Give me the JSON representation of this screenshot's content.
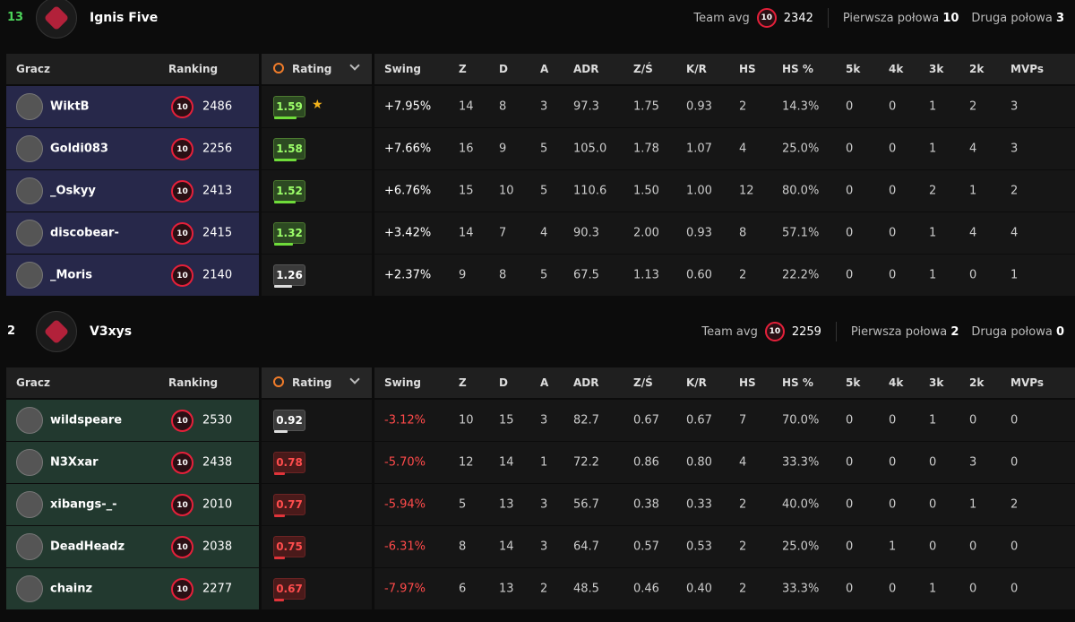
{
  "teams": [
    {
      "score": "13",
      "score_color": "#4cd35a",
      "name": "Ignis Five",
      "team_avg_label": "Team avg",
      "level": "10",
      "team_avg": "2342",
      "first_half_label": "Pierwsza połowa",
      "first_half": "10",
      "second_half_label": "Druga połowa",
      "second_half": "3",
      "row_color": "#27284a",
      "columns": [
        "Gracz",
        "Ranking",
        "Rating",
        "Swing",
        "Z",
        "D",
        "A",
        "ADR",
        "Z/Ś",
        "K/R",
        "HS",
        "HS %",
        "5k",
        "4k",
        "3k",
        "2k",
        "MVPs"
      ],
      "players": [
        {
          "name": "WiktB",
          "level": "10",
          "elo": "2486",
          "rating": 1.59,
          "rating_color": "good",
          "star": "★",
          "swing": "+7.95%",
          "swing_color": "#ffffff",
          "stats": [
            "14",
            "8",
            "3",
            "97.3",
            "1.75",
            "0.93",
            "2",
            "14.3%",
            "0",
            "0",
            "1",
            "2",
            "3"
          ]
        },
        {
          "name": "Goldi083",
          "level": "10",
          "elo": "2256",
          "rating": 1.58,
          "rating_color": "good",
          "swing": "+7.66%",
          "swing_color": "#ffffff",
          "stats": [
            "16",
            "9",
            "5",
            "105.0",
            "1.78",
            "1.07",
            "4",
            "25.0%",
            "0",
            "0",
            "1",
            "4",
            "3"
          ]
        },
        {
          "name": "_Oskyy",
          "level": "10",
          "elo": "2413",
          "rating": 1.52,
          "rating_color": "good",
          "swing": "+6.76%",
          "swing_color": "#ffffff",
          "stats": [
            "15",
            "10",
            "5",
            "110.6",
            "1.50",
            "1.00",
            "12",
            "80.0%",
            "0",
            "0",
            "2",
            "1",
            "2"
          ]
        },
        {
          "name": "discobear-",
          "level": "10",
          "elo": "2415",
          "rating": 1.32,
          "rating_color": "good",
          "swing": "+3.42%",
          "swing_color": "#ffffff",
          "stats": [
            "14",
            "7",
            "4",
            "90.3",
            "2.00",
            "0.93",
            "8",
            "57.1%",
            "0",
            "0",
            "1",
            "4",
            "4"
          ]
        },
        {
          "name": "_Moris",
          "level": "10",
          "elo": "2140",
          "rating": 1.26,
          "rating_color": "neutral",
          "swing": "+2.37%",
          "swing_color": "#ffffff",
          "stats": [
            "9",
            "8",
            "5",
            "67.5",
            "1.13",
            "0.60",
            "2",
            "22.2%",
            "0",
            "0",
            "1",
            "0",
            "1"
          ]
        }
      ]
    },
    {
      "score": "2",
      "score_color": "#ffffff",
      "name": "V3xys",
      "team_avg_label": "Team avg",
      "level": "10",
      "team_avg": "2259",
      "first_half_label": "Pierwsza połowa",
      "first_half": "2",
      "second_half_label": "Druga połowa",
      "second_half": "0",
      "row_color": "#22392f",
      "columns": [
        "Gracz",
        "Ranking",
        "Rating",
        "Swing",
        "Z",
        "D",
        "A",
        "ADR",
        "Z/Ś",
        "K/R",
        "HS",
        "HS %",
        "5k",
        "4k",
        "3k",
        "2k",
        "MVPs"
      ],
      "players": [
        {
          "name": "wildspeare",
          "level": "10",
          "elo": "2530",
          "rating": 0.92,
          "rating_color": "neutral",
          "swing": "-3.12%",
          "swing_color": "#ff4a4a",
          "stats": [
            "10",
            "15",
            "3",
            "82.7",
            "0.67",
            "0.67",
            "7",
            "70.0%",
            "0",
            "0",
            "1",
            "0",
            "0"
          ]
        },
        {
          "name": "N3Xxar",
          "level": "10",
          "elo": "2438",
          "rating": 0.78,
          "rating_color": "bad",
          "swing": "-5.70%",
          "swing_color": "#ff4a4a",
          "stats": [
            "12",
            "14",
            "1",
            "72.2",
            "0.86",
            "0.80",
            "4",
            "33.3%",
            "0",
            "0",
            "0",
            "3",
            "0"
          ]
        },
        {
          "name": "xibangs-_-",
          "level": "10",
          "elo": "2010",
          "rating": 0.77,
          "rating_color": "bad",
          "swing": "-5.94%",
          "swing_color": "#ff4a4a",
          "stats": [
            "5",
            "13",
            "3",
            "56.7",
            "0.38",
            "0.33",
            "2",
            "40.0%",
            "0",
            "0",
            "0",
            "1",
            "2"
          ]
        },
        {
          "name": "DeadHeadz",
          "level": "10",
          "elo": "2038",
          "rating": 0.75,
          "rating_color": "bad",
          "swing": "-6.31%",
          "swing_color": "#ff4a4a",
          "stats": [
            "8",
            "14",
            "3",
            "64.7",
            "0.57",
            "0.53",
            "2",
            "25.0%",
            "0",
            "1",
            "0",
            "0",
            "0"
          ]
        },
        {
          "name": "chainz",
          "level": "10",
          "elo": "2277",
          "rating": 0.67,
          "rating_color": "bad",
          "swing": "-7.97%",
          "swing_color": "#ff4a4a",
          "stats": [
            "6",
            "13",
            "2",
            "48.5",
            "0.46",
            "0.40",
            "2",
            "33.3%",
            "0",
            "0",
            "1",
            "0",
            "0"
          ]
        }
      ]
    }
  ]
}
